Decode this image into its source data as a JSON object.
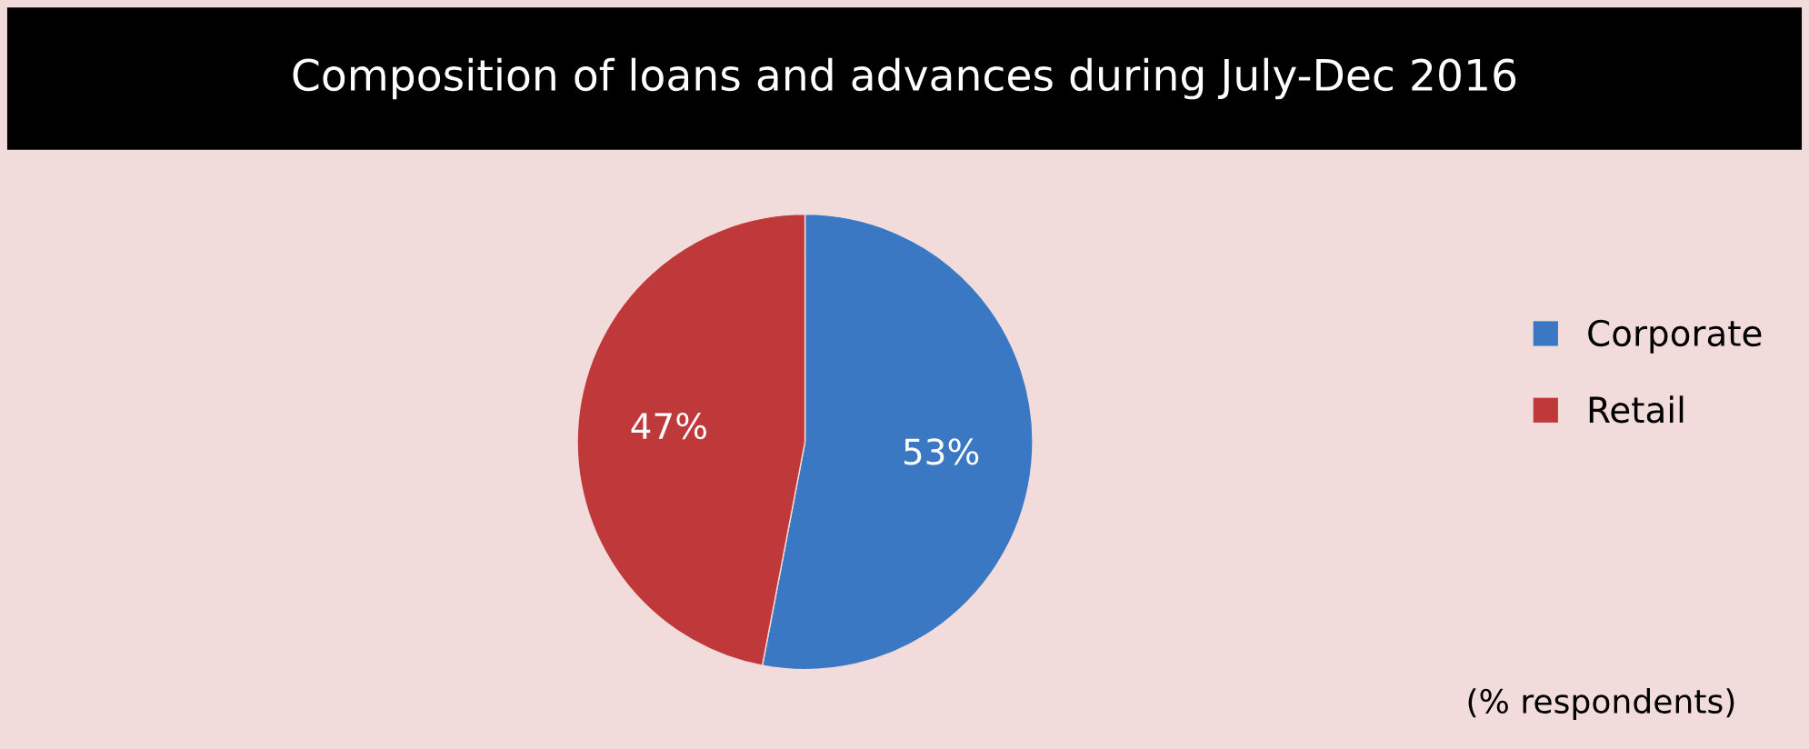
{
  "chart_data": {
    "type": "pie",
    "title": "Composition of loans and advances during July-Dec 2016",
    "categories": [
      "Corporate",
      "Retail"
    ],
    "values": [
      53,
      47
    ],
    "value_labels": [
      "53%",
      "47%"
    ],
    "colors": [
      "#3b78c3",
      "#c0393a"
    ],
    "legend": "right",
    "annotations": [
      "(% respondents)"
    ]
  }
}
